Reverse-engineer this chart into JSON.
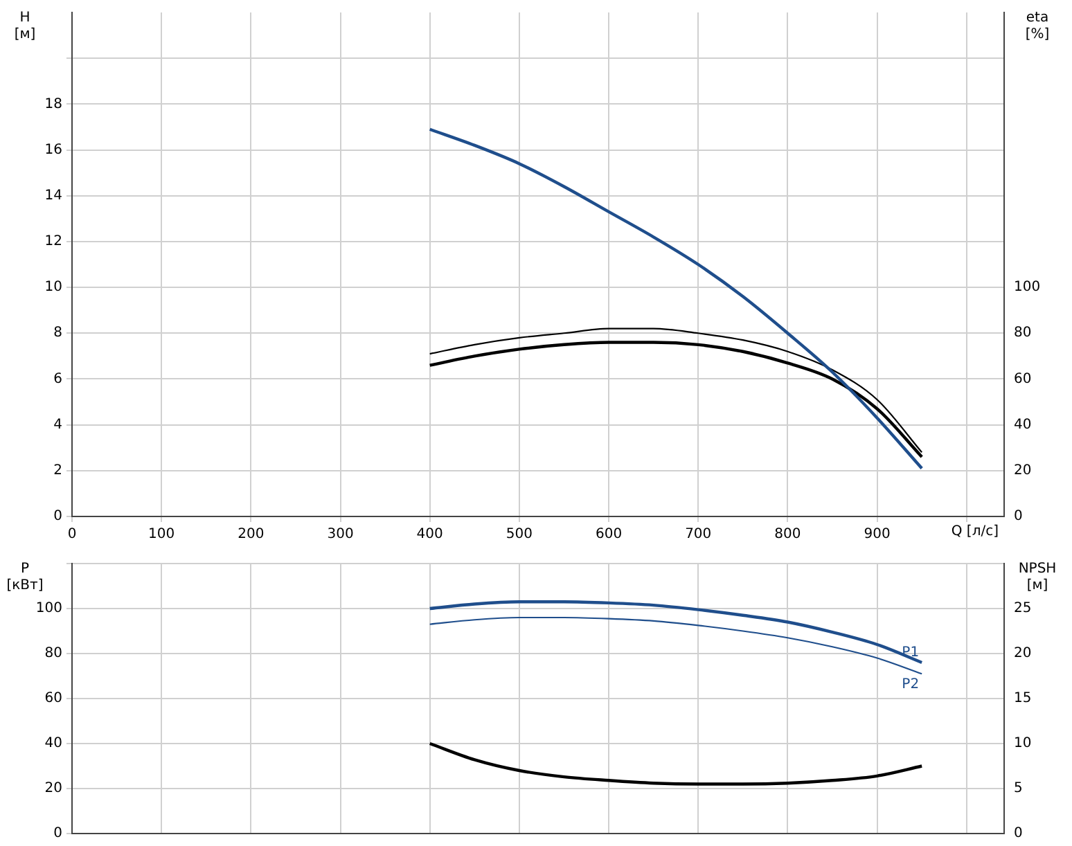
{
  "chart_data": [
    {
      "type": "line",
      "xlabel": "Q [л/с]",
      "ylabel": "H [м]",
      "y2label": "eta [%]",
      "xlim": [
        0,
        1042
      ],
      "xticks": [
        0,
        100,
        200,
        300,
        400,
        500,
        600,
        700,
        800,
        900,
        {
          "value": 1000,
          "label": null
        }
      ],
      "ylim": [
        0,
        22
      ],
      "yticks": [
        0,
        2,
        4,
        6,
        8,
        10,
        12,
        14,
        16,
        18,
        {
          "value": 20,
          "label": null
        }
      ],
      "y2lim": [
        0,
        220
      ],
      "y2ticks": [
        0,
        20,
        40,
        60,
        80,
        100
      ],
      "grid": true,
      "legend": false,
      "marker": "none",
      "line_style": "solid",
      "series": [
        {
          "color": "#1f4e8c",
          "x": [
            400,
            450,
            500,
            550,
            600,
            650,
            700,
            750,
            800,
            850,
            900,
            950
          ],
          "values": [
            16.9,
            16.2,
            15.4,
            14.4,
            13.3,
            12.2,
            11.0,
            9.6,
            8.0,
            6.3,
            4.3,
            2.1
          ]
        },
        {
          "color": "#000000",
          "axis": "y2",
          "x": [
            400,
            450,
            500,
            550,
            600,
            650,
            700,
            750,
            800,
            850,
            900,
            950
          ],
          "values": [
            66,
            70,
            73,
            75,
            76,
            76,
            75,
            72,
            67,
            60,
            47,
            26
          ]
        },
        {
          "color": "#000000",
          "axis": "y2",
          "x": [
            400,
            450,
            500,
            550,
            600,
            650,
            700,
            750,
            800,
            850,
            900,
            950
          ],
          "values": [
            71,
            75,
            78,
            80,
            82,
            82,
            80,
            77,
            72,
            64,
            51,
            28
          ]
        }
      ]
    },
    {
      "type": "line",
      "ylabel": "P [кВт]",
      "y2label": "NPSH [м]",
      "xlim": [
        0,
        1042
      ],
      "xticks": [
        {
          "value": 0,
          "label": null
        },
        {
          "value": 100,
          "label": null
        },
        {
          "value": 200,
          "label": null
        },
        {
          "value": 300,
          "label": null
        },
        {
          "value": 400,
          "label": null
        },
        {
          "value": 500,
          "label": null
        },
        {
          "value": 600,
          "label": null
        },
        {
          "value": 700,
          "label": null
        },
        {
          "value": 800,
          "label": null
        },
        {
          "value": 900,
          "label": null
        },
        {
          "value": 1000,
          "label": null
        }
      ],
      "ylim": [
        0,
        120
      ],
      "yticks": [
        0,
        20,
        40,
        60,
        80,
        100,
        {
          "value": 120,
          "label": null
        }
      ],
      "y2lim": [
        0,
        30
      ],
      "y2ticks": [
        0,
        5,
        10,
        15,
        20,
        25
      ],
      "grid": true,
      "legend": false,
      "marker": "none",
      "line_style": "solid",
      "tick_labels": "y",
      "series": [
        {
          "name": "P1",
          "color": "#1f4e8c",
          "x": [
            400,
            450,
            500,
            550,
            600,
            650,
            700,
            750,
            800,
            850,
            900,
            950
          ],
          "values": [
            100,
            102,
            103,
            103,
            102.5,
            101.5,
            99.5,
            97,
            94,
            89.5,
            84,
            76
          ]
        },
        {
          "name": "P2",
          "color": "#1f4e8c",
          "x": [
            400,
            450,
            500,
            550,
            600,
            650,
            700,
            750,
            800,
            850,
            900,
            950
          ],
          "values": [
            93,
            95,
            96,
            96,
            95.5,
            94.5,
            92.5,
            90,
            87,
            83,
            78,
            71
          ]
        },
        {
          "color": "#000000",
          "axis": "y2",
          "x": [
            400,
            450,
            500,
            550,
            600,
            650,
            700,
            750,
            800,
            850,
            900,
            950
          ],
          "values": [
            10,
            8.2,
            7,
            6.3,
            5.9,
            5.6,
            5.5,
            5.5,
            5.6,
            5.9,
            6.4,
            7.5
          ]
        }
      ]
    }
  ]
}
